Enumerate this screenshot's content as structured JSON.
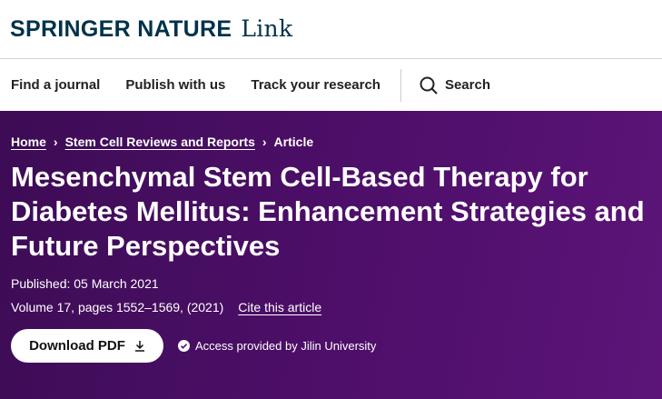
{
  "header": {
    "brand": "SPRINGER NATURE",
    "brand_suffix": "Link"
  },
  "nav": {
    "items": [
      "Find a journal",
      "Publish with us",
      "Track your research"
    ],
    "search": "Search"
  },
  "breadcrumb": [
    "Home",
    "Stem Cell Reviews and Reports",
    "Article"
  ],
  "article": {
    "title": "Mesenchymal Stem Cell-Based Therapy for Diabetes Mellitus: Enhancement Strategies and Future Perspectives",
    "published": "Published: 05 March 2021",
    "volume": "Volume 17, pages 1552–1569, (2021)",
    "cite": "Cite this article",
    "download": "Download PDF",
    "access": "Access provided by Jilin University"
  },
  "colors": {
    "brand": "#01324b",
    "hero": "#4e0f6a"
  }
}
